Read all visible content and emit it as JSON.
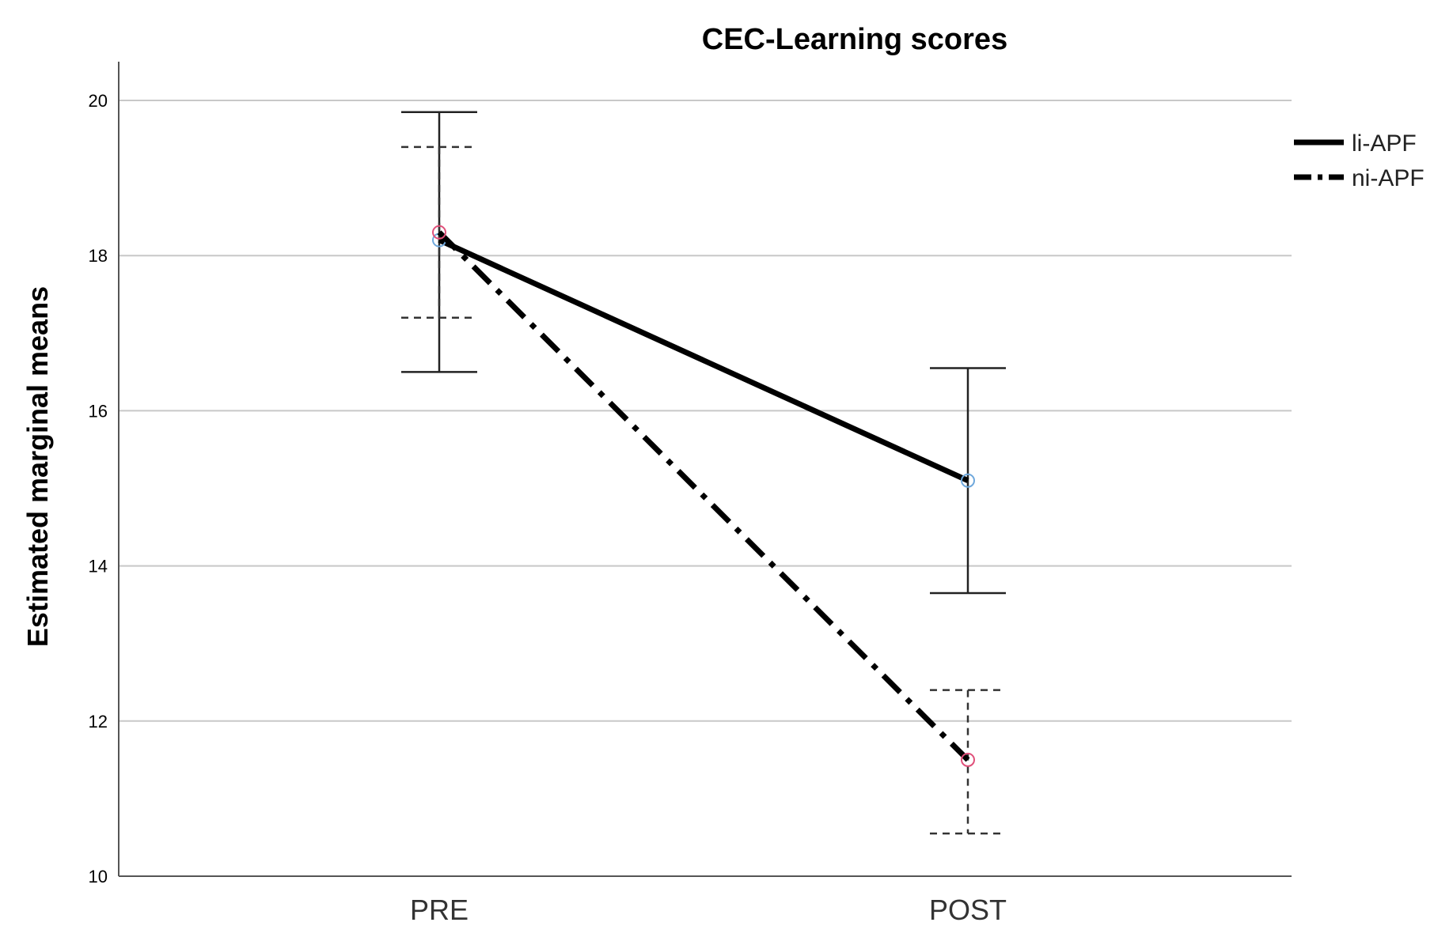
{
  "chart_data": {
    "type": "line",
    "title": "CEC-Learning scores",
    "xlabel": "",
    "ylabel": "Estimated marginal means",
    "categories": [
      "PRE",
      "POST"
    ],
    "ylim": [
      10,
      20
    ],
    "yticks": [
      "10",
      "12",
      "14",
      "16",
      "18",
      "20"
    ],
    "grid": true,
    "legend_position": "top-right",
    "series": [
      {
        "name": "li-APF",
        "values": [
          18.2,
          15.1
        ],
        "error_low": [
          16.5,
          13.65
        ],
        "error_high": [
          19.85,
          16.55
        ],
        "line_style": "solid",
        "error_style": "solid",
        "marker_color": "#6fa8dc"
      },
      {
        "name": "ni-APF",
        "values": [
          18.3,
          11.5
        ],
        "error_low": [
          17.2,
          10.55
        ],
        "error_high": [
          19.4,
          12.4
        ],
        "line_style": "dash-dot",
        "error_style": "dashed",
        "marker_color": "#e0507a"
      }
    ]
  }
}
